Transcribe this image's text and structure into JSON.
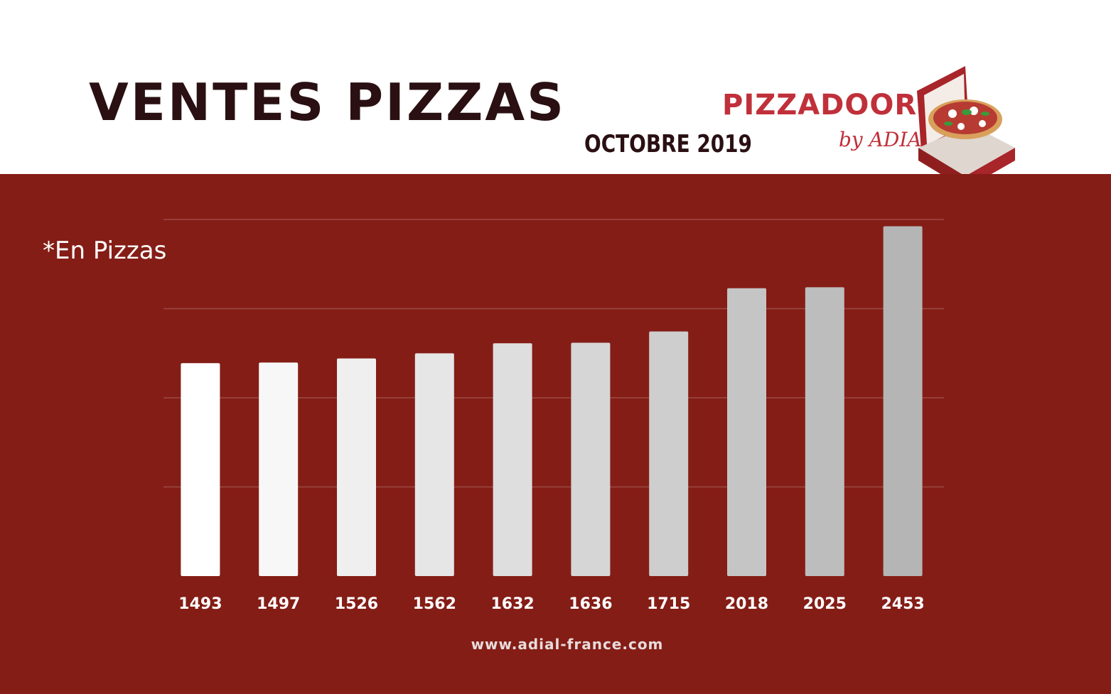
{
  "header": {
    "title": "VENTES PIZZAS",
    "subtitle": "OCTOBRE 2019"
  },
  "logo": {
    "text": "PIZZADOOR",
    "sub": "by ADIAL"
  },
  "chart": {
    "unit_note": "*En Pizzas"
  },
  "footer": {
    "website": "www.adial-france.com"
  },
  "colors": {
    "panel": "#841d16",
    "title": "#2a1012",
    "brand": "#c0303a",
    "bar_first": "#ffffff",
    "bar_last": "#b5b5b5",
    "grid": "#9b4a44"
  },
  "chart_data": {
    "type": "bar",
    "title": "VENTES PIZZAS",
    "subtitle": "OCTOBRE 2019",
    "xlabel": "",
    "ylabel": "",
    "unit_note": "*En Pizzas",
    "categories": [
      "1493",
      "1497",
      "1526",
      "1562",
      "1632",
      "1636",
      "1715",
      "2018",
      "2025",
      "2453"
    ],
    "values": [
      1493,
      1497,
      1526,
      1562,
      1632,
      1636,
      1715,
      2018,
      2025,
      2453
    ],
    "ylim": [
      0,
      2500
    ],
    "grid": true,
    "y_ticks_shown": false,
    "legend": "none"
  }
}
